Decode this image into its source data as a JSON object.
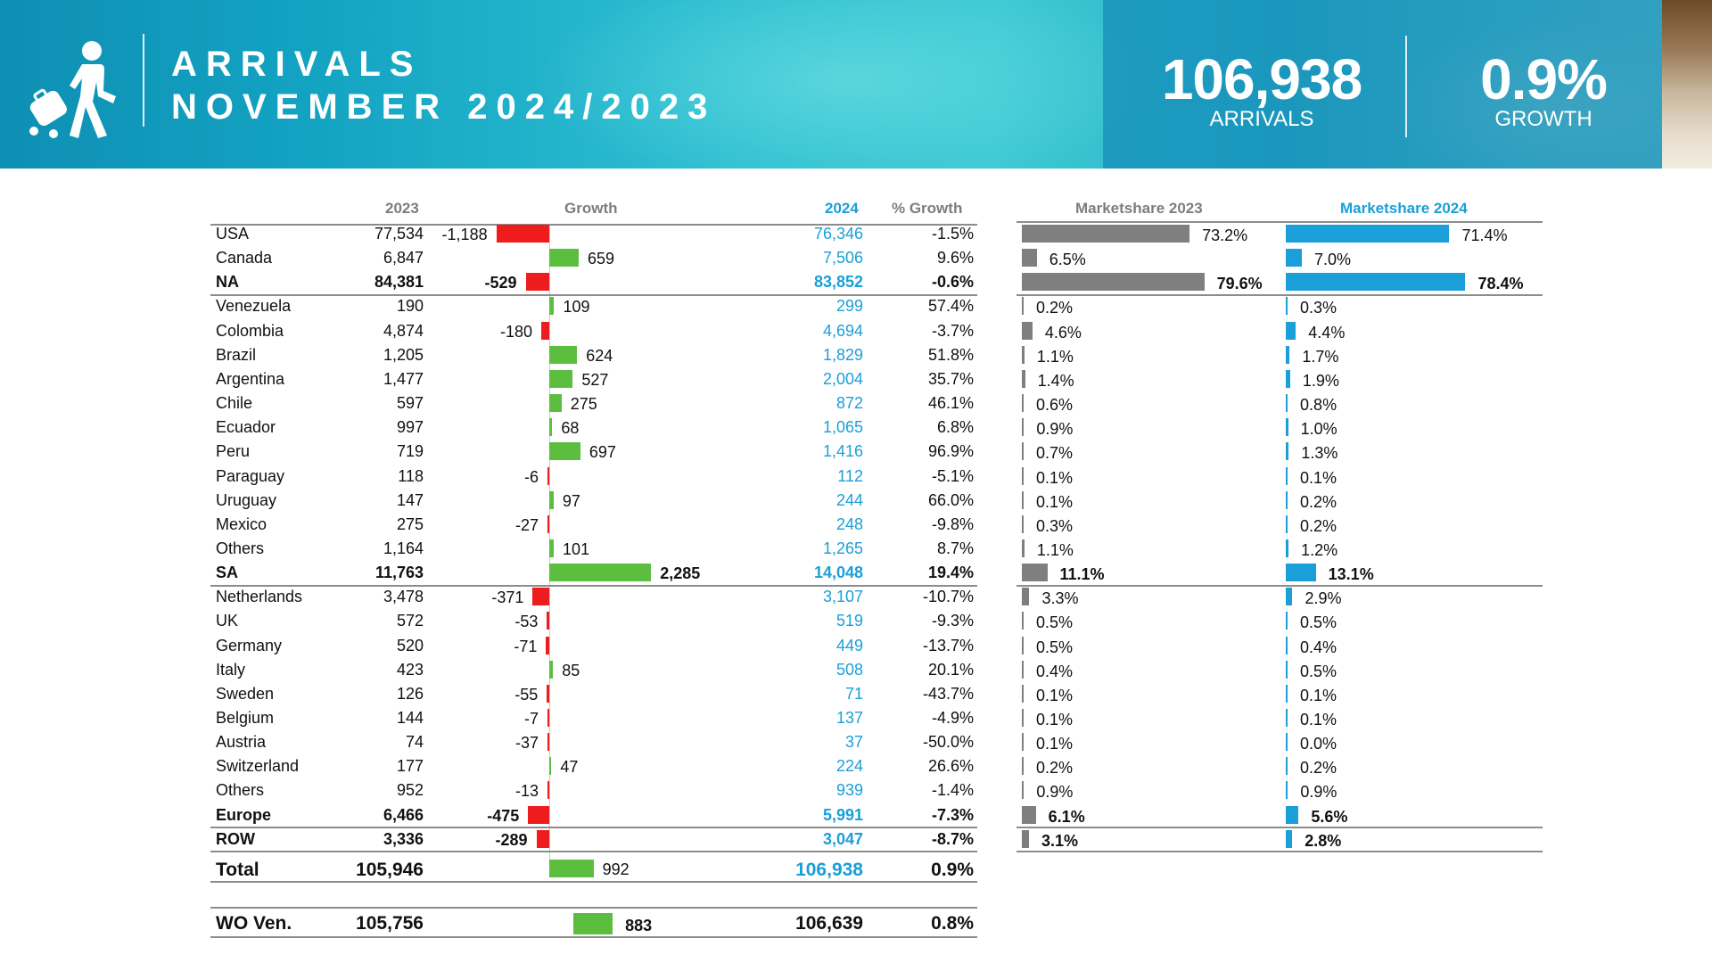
{
  "banner": {
    "title_line1": "ARRIVALS",
    "title_line2": "NOVEMBER 2024/2023",
    "kpi_arrivals_value": "106,938",
    "kpi_arrivals_label": "ARRIVALS",
    "kpi_growth_value": "0.9%",
    "kpi_growth_label": "GROWTH",
    "icon": "traveler-with-suitcase-icon"
  },
  "headers": {
    "col_2023": "2023",
    "col_growth": "Growth",
    "col_2024": "2024",
    "col_pct_growth": "% Growth",
    "col_ms2023": "Marketshare 2023",
    "col_ms2024": "Marketshare 2024"
  },
  "colors": {
    "positive_growth": "#5cbe3f",
    "negative_growth": "#ee1c1c",
    "marketshare_2023": "#7f7f7f",
    "marketshare_2024": "#1a9fd8",
    "value_2024_text": "#1a9fd8"
  },
  "chart_data": {
    "type": "table",
    "rows": [
      {
        "name": "USA",
        "v2023": "77,534",
        "growth": -1188,
        "growth_label": "-1,188",
        "v2024": "76,346",
        "pct": "-1.5%",
        "ms2023": 73.2,
        "ms2023_label": "73.2%",
        "ms2024": 71.4,
        "ms2024_label": "71.4%",
        "bold": false
      },
      {
        "name": "Canada",
        "v2023": "6,847",
        "growth": 659,
        "growth_label": "659",
        "v2024": "7,506",
        "pct": "9.6%",
        "ms2023": 6.5,
        "ms2023_label": "6.5%",
        "ms2024": 7.0,
        "ms2024_label": "7.0%",
        "bold": false
      },
      {
        "name": "NA",
        "v2023": "84,381",
        "growth": -529,
        "growth_label": "-529",
        "v2024": "83,852",
        "pct": "-0.6%",
        "ms2023": 79.6,
        "ms2023_label": "79.6%",
        "ms2024": 78.4,
        "ms2024_label": "78.4%",
        "bold": true
      },
      {
        "name": "Venezuela",
        "v2023": "190",
        "growth": 109,
        "growth_label": "109",
        "v2024": "299",
        "pct": "57.4%",
        "ms2023": 0.2,
        "ms2023_label": "0.2%",
        "ms2024": 0.3,
        "ms2024_label": "0.3%",
        "bold": false
      },
      {
        "name": "Colombia",
        "v2023": "4,874",
        "growth": -180,
        "growth_label": "-180",
        "v2024": "4,694",
        "pct": "-3.7%",
        "ms2023": 4.6,
        "ms2023_label": "4.6%",
        "ms2024": 4.4,
        "ms2024_label": "4.4%",
        "bold": false
      },
      {
        "name": "Brazil",
        "v2023": "1,205",
        "growth": 624,
        "growth_label": "624",
        "v2024": "1,829",
        "pct": "51.8%",
        "ms2023": 1.1,
        "ms2023_label": "1.1%",
        "ms2024": 1.7,
        "ms2024_label": "1.7%",
        "bold": false
      },
      {
        "name": "Argentina",
        "v2023": "1,477",
        "growth": 527,
        "growth_label": "527",
        "v2024": "2,004",
        "pct": "35.7%",
        "ms2023": 1.4,
        "ms2023_label": "1.4%",
        "ms2024": 1.9,
        "ms2024_label": "1.9%",
        "bold": false
      },
      {
        "name": "Chile",
        "v2023": "597",
        "growth": 275,
        "growth_label": "275",
        "v2024": "872",
        "pct": "46.1%",
        "ms2023": 0.6,
        "ms2023_label": "0.6%",
        "ms2024": 0.8,
        "ms2024_label": "0.8%",
        "bold": false
      },
      {
        "name": "Ecuador",
        "v2023": "997",
        "growth": 68,
        "growth_label": "68",
        "v2024": "1,065",
        "pct": "6.8%",
        "ms2023": 0.9,
        "ms2023_label": "0.9%",
        "ms2024": 1.0,
        "ms2024_label": "1.0%",
        "bold": false
      },
      {
        "name": "Peru",
        "v2023": "719",
        "growth": 697,
        "growth_label": "697",
        "v2024": "1,416",
        "pct": "96.9%",
        "ms2023": 0.7,
        "ms2023_label": "0.7%",
        "ms2024": 1.3,
        "ms2024_label": "1.3%",
        "bold": false
      },
      {
        "name": "Paraguay",
        "v2023": "118",
        "growth": -6,
        "growth_label": "-6",
        "v2024": "112",
        "pct": "-5.1%",
        "ms2023": 0.1,
        "ms2023_label": "0.1%",
        "ms2024": 0.1,
        "ms2024_label": "0.1%",
        "bold": false
      },
      {
        "name": "Uruguay",
        "v2023": "147",
        "growth": 97,
        "growth_label": "97",
        "v2024": "244",
        "pct": "66.0%",
        "ms2023": 0.1,
        "ms2023_label": "0.1%",
        "ms2024": 0.2,
        "ms2024_label": "0.2%",
        "bold": false
      },
      {
        "name": "Mexico",
        "v2023": "275",
        "growth": -27,
        "growth_label": "-27",
        "v2024": "248",
        "pct": "-9.8%",
        "ms2023": 0.3,
        "ms2023_label": "0.3%",
        "ms2024": 0.2,
        "ms2024_label": "0.2%",
        "bold": false
      },
      {
        "name": "Others",
        "v2023": "1,164",
        "growth": 101,
        "growth_label": "101",
        "v2024": "1,265",
        "pct": "8.7%",
        "ms2023": 1.1,
        "ms2023_label": "1.1%",
        "ms2024": 1.2,
        "ms2024_label": "1.2%",
        "bold": false
      },
      {
        "name": "SA",
        "v2023": "11,763",
        "growth": 2285,
        "growth_label": "2,285",
        "v2024": "14,048",
        "pct": "19.4%",
        "ms2023": 11.1,
        "ms2023_label": "11.1%",
        "ms2024": 13.1,
        "ms2024_label": "13.1%",
        "bold": true
      },
      {
        "name": "Netherlands",
        "v2023": "3,478",
        "growth": -371,
        "growth_label": "-371",
        "v2024": "3,107",
        "pct": "-10.7%",
        "ms2023": 3.3,
        "ms2023_label": "3.3%",
        "ms2024": 2.9,
        "ms2024_label": "2.9%",
        "bold": false
      },
      {
        "name": "UK",
        "v2023": "572",
        "growth": -53,
        "growth_label": "-53",
        "v2024": "519",
        "pct": "-9.3%",
        "ms2023": 0.5,
        "ms2023_label": "0.5%",
        "ms2024": 0.5,
        "ms2024_label": "0.5%",
        "bold": false
      },
      {
        "name": "Germany",
        "v2023": "520",
        "growth": -71,
        "growth_label": "-71",
        "v2024": "449",
        "pct": "-13.7%",
        "ms2023": 0.5,
        "ms2023_label": "0.5%",
        "ms2024": 0.4,
        "ms2024_label": "0.4%",
        "bold": false
      },
      {
        "name": "Italy",
        "v2023": "423",
        "growth": 85,
        "growth_label": "85",
        "v2024": "508",
        "pct": "20.1%",
        "ms2023": 0.4,
        "ms2023_label": "0.4%",
        "ms2024": 0.5,
        "ms2024_label": "0.5%",
        "bold": false
      },
      {
        "name": "Sweden",
        "v2023": "126",
        "growth": -55,
        "growth_label": "-55",
        "v2024": "71",
        "pct": "-43.7%",
        "ms2023": 0.1,
        "ms2023_label": "0.1%",
        "ms2024": 0.1,
        "ms2024_label": "0.1%",
        "bold": false
      },
      {
        "name": "Belgium",
        "v2023": "144",
        "growth": -7,
        "growth_label": "-7",
        "v2024": "137",
        "pct": "-4.9%",
        "ms2023": 0.1,
        "ms2023_label": "0.1%",
        "ms2024": 0.1,
        "ms2024_label": "0.1%",
        "bold": false
      },
      {
        "name": "Austria",
        "v2023": "74",
        "growth": -37,
        "growth_label": "-37",
        "v2024": "37",
        "pct": "-50.0%",
        "ms2023": 0.1,
        "ms2023_label": "0.1%",
        "ms2024": 0.0,
        "ms2024_label": "0.0%",
        "bold": false
      },
      {
        "name": "Switzerland",
        "v2023": "177",
        "growth": 47,
        "growth_label": "47",
        "v2024": "224",
        "pct": "26.6%",
        "ms2023": 0.2,
        "ms2023_label": "0.2%",
        "ms2024": 0.2,
        "ms2024_label": "0.2%",
        "bold": false
      },
      {
        "name": "Others",
        "v2023": "952",
        "growth": -13,
        "growth_label": "-13",
        "v2024": "939",
        "pct": "-1.4%",
        "ms2023": 0.9,
        "ms2023_label": "0.9%",
        "ms2024": 0.9,
        "ms2024_label": "0.9%",
        "bold": false
      },
      {
        "name": "Europe",
        "v2023": "6,466",
        "growth": -475,
        "growth_label": "-475",
        "v2024": "5,991",
        "pct": "-7.3%",
        "ms2023": 6.1,
        "ms2023_label": "6.1%",
        "ms2024": 5.6,
        "ms2024_label": "5.6%",
        "bold": true
      },
      {
        "name": "ROW",
        "v2023": "3,336",
        "growth": -289,
        "growth_label": "-289",
        "v2024": "3,047",
        "pct": "-8.7%",
        "ms2023": 3.1,
        "ms2023_label": "3.1%",
        "ms2024": 2.8,
        "ms2024_label": "2.8%",
        "bold": true
      }
    ],
    "total": {
      "name": "Total",
      "v2023": "105,946",
      "growth": 992,
      "growth_label": "992",
      "v2024": "106,938",
      "pct": "0.9%"
    },
    "wo_ven": {
      "name": "WO Ven.",
      "v2023": "105,756",
      "growth": 883,
      "growth_label": "883",
      "v2024": "106,639",
      "pct": "0.8%"
    }
  }
}
